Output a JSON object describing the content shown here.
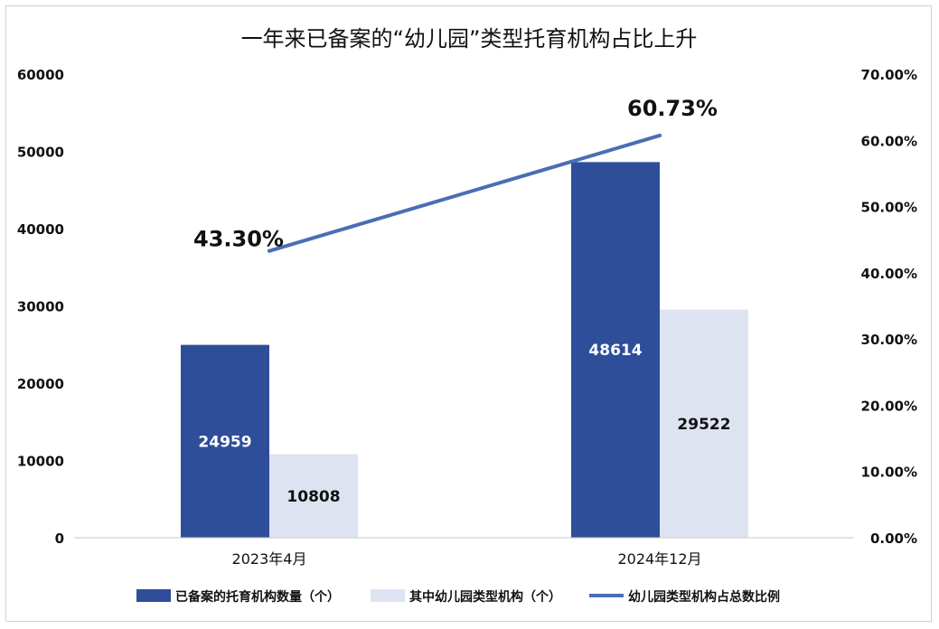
{
  "chart_data": {
    "type": "bar",
    "title": "一年来已备案的“幼儿园”类型托育机构占比上升",
    "categories": [
      "2023年4月",
      "2024年12月"
    ],
    "series": [
      {
        "name": "已备案的托育机构数量（个）",
        "type": "bar",
        "axis": "left",
        "values": [
          24959,
          48614
        ],
        "value_labels": [
          "24959",
          "48614"
        ]
      },
      {
        "name": "其中幼儿园类型机构（个）",
        "type": "bar",
        "axis": "left",
        "values": [
          10808,
          29522
        ],
        "value_labels": [
          "10808",
          "29522"
        ]
      },
      {
        "name": "幼儿园类型机构占总数比例",
        "type": "line",
        "axis": "right",
        "values": [
          43.3,
          60.73
        ],
        "value_labels": [
          "43.30%",
          "60.73%"
        ]
      }
    ],
    "left_axis": {
      "min": 0,
      "max": 60000,
      "ticks": [
        "0",
        "10000",
        "20000",
        "30000",
        "40000",
        "50000",
        "60000"
      ]
    },
    "right_axis": {
      "min": 0,
      "max": 70,
      "ticks": [
        "0.00%",
        "10.00%",
        "20.00%",
        "30.00%",
        "40.00%",
        "50.00%",
        "60.00%",
        "70.00%"
      ]
    },
    "grid": false,
    "legend_position": "bottom",
    "colors": {
      "bar1": "#2e4e9a",
      "bar2": "#dde3f1",
      "line": "#4a6eb5",
      "text": "#111111",
      "bar1_label": "#ffffff"
    }
  }
}
